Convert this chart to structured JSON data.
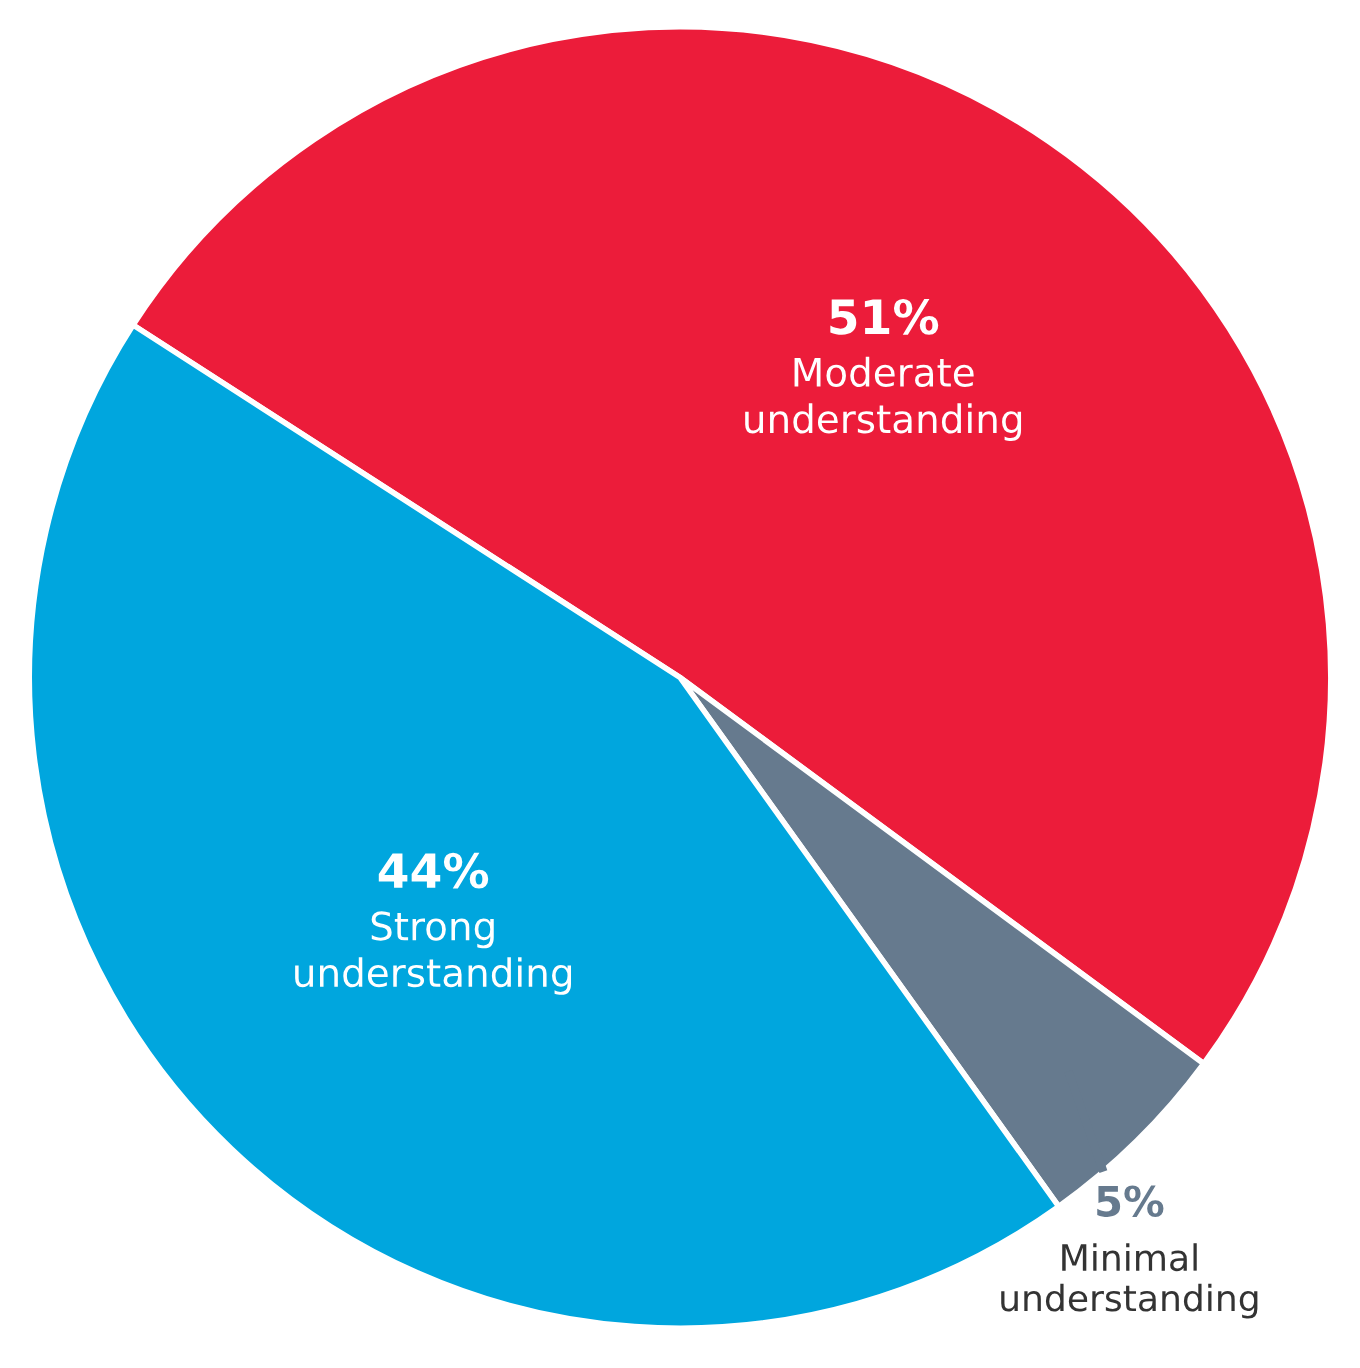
{
  "chart_data": {
    "type": "pie",
    "categories": [
      "Moderate understanding",
      "Minimal understanding",
      "Strong understanding"
    ],
    "values": [
      51,
      5,
      44
    ],
    "colors": [
      "#ec1c3a",
      "#667a8e",
      "#00a6de"
    ],
    "value_labels": [
      "51%",
      "5%",
      "44%"
    ]
  }
}
